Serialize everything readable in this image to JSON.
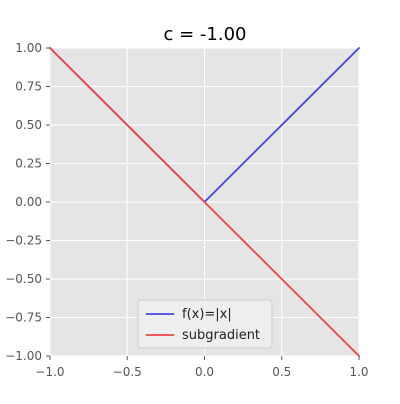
{
  "chart_data": {
    "type": "line",
    "title": "c = -1.00",
    "xlabel": "",
    "ylabel": "",
    "xlim": [
      -1.0,
      1.0
    ],
    "ylim": [
      -1.0,
      1.0
    ],
    "grid": true,
    "legend_position": "lower-center",
    "x_ticks": [
      -1.0,
      -0.5,
      0.0,
      0.5,
      1.0
    ],
    "x_tick_labels": [
      "−1.0",
      "−0.5",
      "0.0",
      "0.5",
      "1.0"
    ],
    "y_ticks": [
      1.0,
      0.75,
      0.5,
      0.25,
      0.0,
      -0.25,
      -0.5,
      -0.75,
      -1.0
    ],
    "y_tick_labels": [
      "1.00",
      "0.75",
      "0.50",
      "0.25",
      "0.00",
      "−0.25",
      "−0.50",
      "−0.75",
      "−1.00"
    ],
    "series": [
      {
        "name": "f(x)=|x|",
        "color": "#4444dd",
        "x": [
          -1.0,
          0.0,
          1.0
        ],
        "y": [
          1.0,
          0.0,
          1.0
        ]
      },
      {
        "name": "subgradient",
        "color": "#ee4444",
        "x": [
          -1.0,
          1.0
        ],
        "y": [
          1.0,
          -1.0
        ]
      }
    ],
    "colors": {
      "plot_background": "#e5e5e5",
      "grid": "#ffffff",
      "tick_text": "#555555",
      "title_text": "#000000"
    }
  }
}
